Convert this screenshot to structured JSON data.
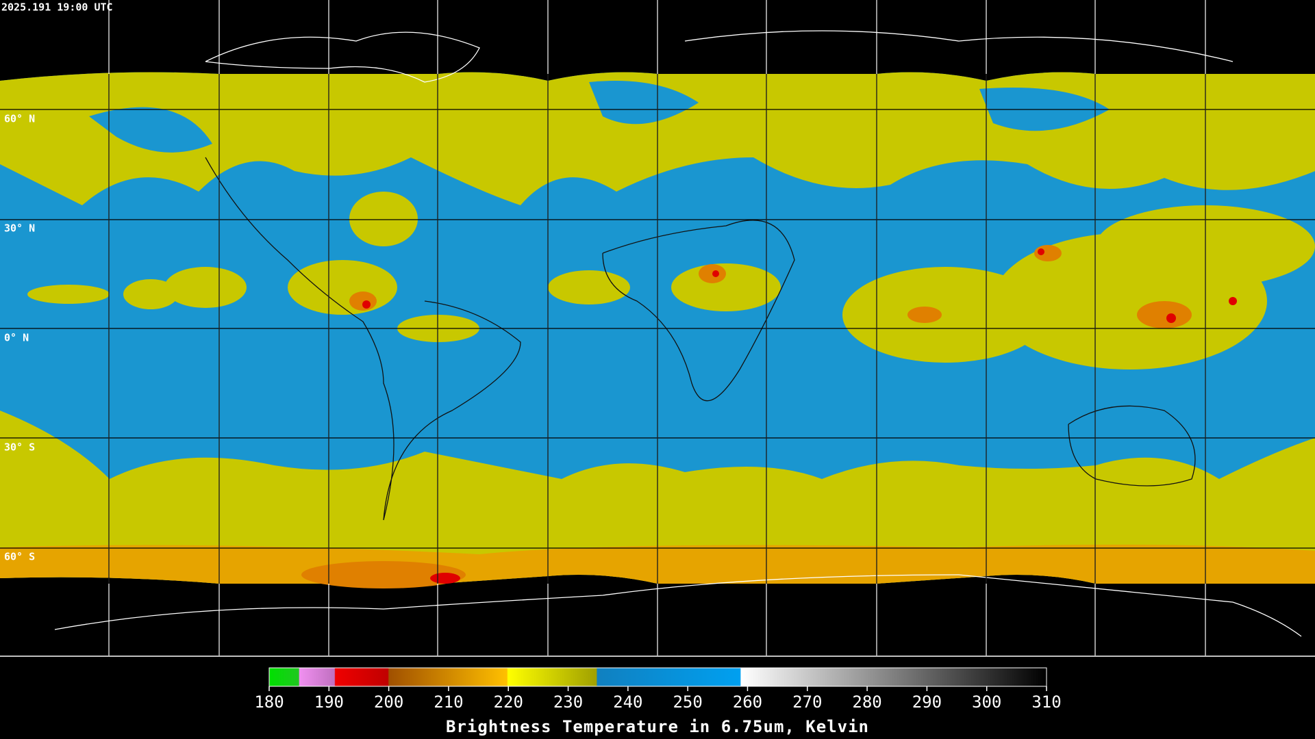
{
  "header": {
    "timestamp": "2025.191 19:00 UTC"
  },
  "map": {
    "latitude_labels": [
      "60° N",
      "30° N",
      "0° N",
      "30° S",
      "60° S"
    ]
  },
  "colorbar": {
    "ticks": [
      180,
      190,
      200,
      210,
      220,
      230,
      240,
      250,
      260,
      270,
      280,
      290,
      300,
      310
    ],
    "title": "Brightness Temperature in 6.75um, Kelvin"
  }
}
